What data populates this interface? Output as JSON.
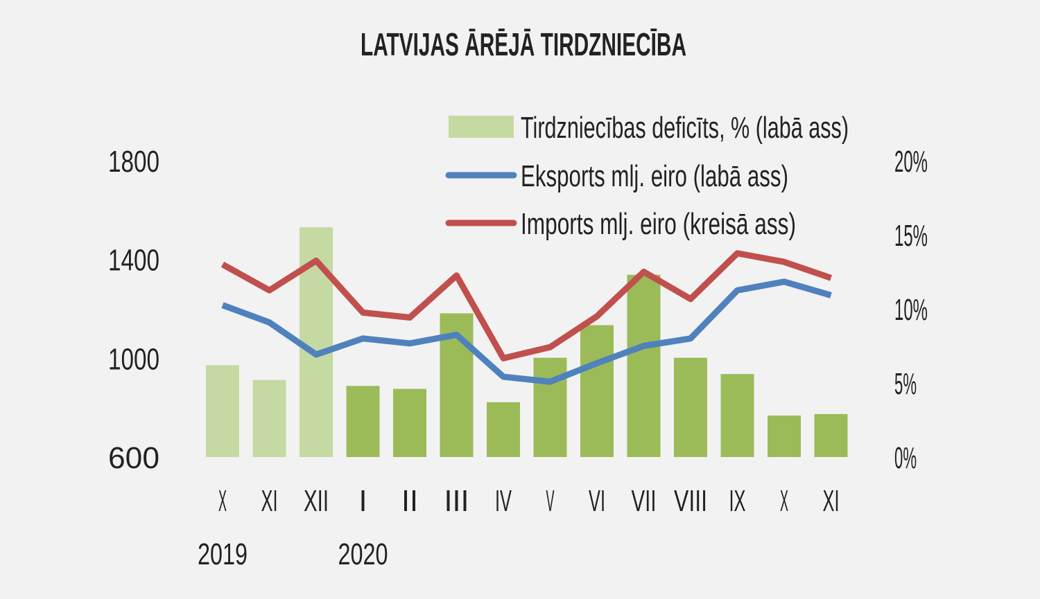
{
  "chart_data": {
    "type": "bar+line",
    "title": "LATVIJAS ĀRĒJĀ TIRDZNIECĪBA",
    "categories": [
      "X",
      "XI",
      "XII",
      "I",
      "II",
      "III",
      "IV",
      "V",
      "VI",
      "VII",
      "VIII",
      "IX",
      "X",
      "XI"
    ],
    "year_labels": [
      {
        "label": "2019",
        "category_index": 0
      },
      {
        "label": "2020",
        "category_index": 3
      }
    ],
    "left_axis": {
      "ylim": [
        600,
        1800
      ],
      "ticks": [
        "1800",
        "1400",
        "1000",
        "600"
      ],
      "tick_values": [
        1800,
        1400,
        1000,
        600
      ]
    },
    "right_axis": {
      "ylim": [
        0,
        20
      ],
      "ticks": [
        "20%",
        "15%",
        "10%",
        "5%",
        "0%"
      ],
      "tick_values": [
        20,
        15,
        10,
        5,
        0
      ]
    },
    "grid": false,
    "legend_position": "top-right",
    "series": [
      {
        "name": "Tirdzniecības deficīts, % (labā ass)",
        "kind": "bar",
        "axis": "right",
        "color": "#9bbb59",
        "color_2019": "#c5d9a3",
        "values": [
          6.2,
          5.2,
          15.5,
          4.8,
          4.6,
          9.7,
          3.7,
          6.7,
          8.9,
          12.3,
          6.7,
          5.6,
          2.8,
          2.9
        ]
      },
      {
        "name": "Eksports mlj. eiro (labā ass)",
        "kind": "line",
        "axis": "left",
        "color": "#4f81bd",
        "values": [
          1215,
          1145,
          1015,
          1080,
          1060,
          1095,
          925,
          905,
          980,
          1050,
          1080,
          1275,
          1310,
          1255
        ]
      },
      {
        "name": "Imports mlj. eiro (kreisā ass)",
        "kind": "line",
        "axis": "left",
        "color": "#c0504d",
        "values": [
          1380,
          1275,
          1395,
          1185,
          1165,
          1335,
          1000,
          1045,
          1170,
          1350,
          1240,
          1425,
          1390,
          1325
        ]
      }
    ]
  }
}
